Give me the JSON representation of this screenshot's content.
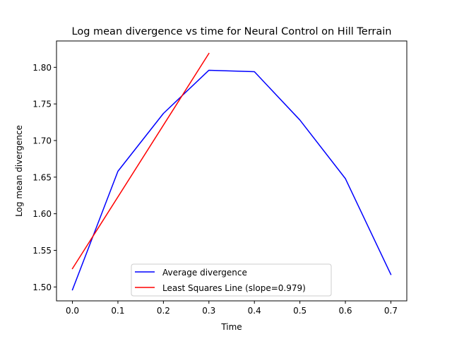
{
  "chart_data": {
    "type": "line",
    "title": "Log mean divergence vs time for Neural Control on Hill Terrain",
    "xlabel": "Time",
    "ylabel": "Log mean divergence",
    "xlim": [
      -0.035,
      0.735
    ],
    "ylim": [
      1.481,
      1.836
    ],
    "x_ticks": [
      "0.0",
      "0.1",
      "0.2",
      "0.3",
      "0.4",
      "0.5",
      "0.6",
      "0.7"
    ],
    "x_tick_values": [
      0.0,
      0.1,
      0.2,
      0.3,
      0.4,
      0.5,
      0.6,
      0.7
    ],
    "y_ticks": [
      "1.50",
      "1.55",
      "1.60",
      "1.65",
      "1.70",
      "1.75",
      "1.80"
    ],
    "y_tick_values": [
      1.5,
      1.55,
      1.6,
      1.65,
      1.7,
      1.75,
      1.8
    ],
    "grid": false,
    "legend_position": "lower center",
    "series": [
      {
        "name": "Average divergence",
        "color": "#0000ff",
        "x": [
          0.0,
          0.1,
          0.2,
          0.3,
          0.4,
          0.5,
          0.6,
          0.7
        ],
        "y": [
          1.496,
          1.658,
          1.737,
          1.796,
          1.794,
          1.728,
          1.648,
          1.517
        ]
      },
      {
        "name": "Least Squares Line (slope=0.979)",
        "color": "#ff0000",
        "x": [
          0.0,
          0.3
        ],
        "y": [
          1.525,
          1.819
        ]
      }
    ]
  }
}
